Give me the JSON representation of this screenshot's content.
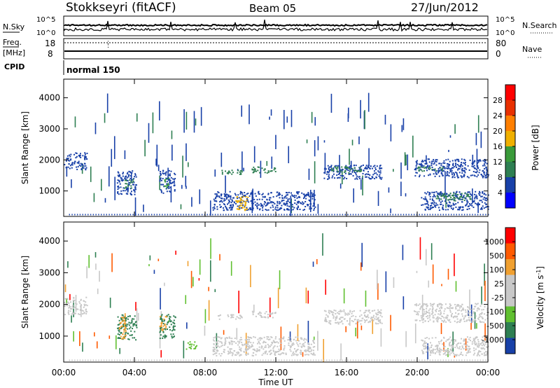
{
  "header": {
    "station": "Stokkseyri (fitACF)",
    "beam": "Beam 05",
    "date": "27/Jun/2012"
  },
  "noise_panel": {
    "left_label": "N.Sky",
    "right_label": "N.Search",
    "left_ticks": [
      "10^5",
      "10^0"
    ],
    "right_ticks": [
      "10^5",
      "10^0"
    ]
  },
  "freq_panel": {
    "left_label_1": "Freq.",
    "left_label_2": "[MHz]",
    "right_label": "Nave",
    "left_ticks": [
      "18",
      "8"
    ],
    "right_ticks": [
      "80",
      "0"
    ],
    "freq_mhz": 8,
    "nave": 0
  },
  "cpid": {
    "label": "CPID",
    "value": "normal 150"
  },
  "colors": {
    "power_scale": [
      "#0000ff",
      "#1840a8",
      "#2e7f52",
      "#3a9b3a",
      "#f0b000",
      "#ff7f00",
      "#e83000",
      "#ff0000"
    ],
    "velocity_scale": [
      "#ff0000",
      "#ff5a00",
      "#f0a030",
      "#c8c8c8",
      "#c8c8c8",
      "#60c030",
      "#2e7f52",
      "#1840a8"
    ],
    "ground_scatter": "#c8c8c8"
  },
  "chart_data": [
    {
      "type": "heatmap",
      "title": "",
      "ylabel": "Slant Range [km]",
      "xlabel": "",
      "x_ticks": [
        "00:00",
        "04:00",
        "08:00",
        "12:00",
        "16:00",
        "20:00",
        "00:00"
      ],
      "y_ticks": [
        "1000",
        "2000",
        "3000",
        "4000"
      ],
      "xlim_hours": [
        0,
        24
      ],
      "ylim_km": [
        180,
        4600
      ],
      "colorbar_label": "Power [dB]",
      "colorbar_ticks": [
        "4",
        "8",
        "12",
        "16",
        "20",
        "24",
        "28"
      ],
      "colorbar_range": [
        0,
        32
      ],
      "regions": [
        {
          "t0": 0.0,
          "t1": 1.3,
          "r0": 1700,
          "r1": 2250,
          "color": 1
        },
        {
          "t0": 3.0,
          "t1": 4.1,
          "r0": 900,
          "r1": 1700,
          "color": 1
        },
        {
          "t0": 3.4,
          "t1": 3.9,
          "r0": 1100,
          "r1": 1400,
          "color": 2
        },
        {
          "t0": 5.4,
          "t1": 6.3,
          "r0": 950,
          "r1": 1700,
          "color": 1
        },
        {
          "t0": 5.6,
          "t1": 5.9,
          "r0": 1100,
          "r1": 1450,
          "color": 3
        },
        {
          "t0": 8.7,
          "t1": 10.1,
          "r0": 1550,
          "r1": 1700,
          "color": 2
        },
        {
          "t0": 10.6,
          "t1": 12.0,
          "r0": 1600,
          "r1": 1800,
          "color": 2
        },
        {
          "t0": 8.4,
          "t1": 14.2,
          "r0": 400,
          "r1": 1000,
          "color": 1
        },
        {
          "t0": 9.7,
          "t1": 10.4,
          "r0": 380,
          "r1": 900,
          "color": 4
        },
        {
          "t0": 14.7,
          "t1": 18.0,
          "r0": 1400,
          "r1": 1850,
          "color": 1
        },
        {
          "t0": 15.0,
          "t1": 16.8,
          "r0": 1600,
          "r1": 1800,
          "color": 2
        },
        {
          "t0": 19.8,
          "t1": 24.0,
          "r0": 1450,
          "r1": 2050,
          "color": 1
        },
        {
          "t0": 20.0,
          "t1": 21.5,
          "r0": 1650,
          "r1": 1800,
          "color": 2
        },
        {
          "t0": 20.2,
          "t1": 24.0,
          "r0": 400,
          "r1": 1000,
          "color": 1
        },
        {
          "t0": 21.0,
          "t1": 23.0,
          "r0": 700,
          "r1": 950,
          "color": 2
        }
      ]
    },
    {
      "type": "heatmap",
      "title": "",
      "ylabel": "Slant Range [km]",
      "xlabel": "Time UT",
      "x_ticks": [
        "00:00",
        "04:00",
        "08:00",
        "12:00",
        "16:00",
        "20:00",
        "00:00"
      ],
      "y_ticks": [
        "1000",
        "2000",
        "3000",
        "4000"
      ],
      "xlim_hours": [
        0,
        24
      ],
      "ylim_km": [
        180,
        4600
      ],
      "colorbar_label": "Velocity [m s^-1]",
      "colorbar_ticks": [
        "1000",
        "500",
        "100",
        "25",
        "-25",
        "-100",
        "-500",
        "-1000"
      ],
      "regions": [
        {
          "t0": 0.0,
          "t1": 1.3,
          "r0": 1700,
          "r1": 2250,
          "color": 3
        },
        {
          "t0": 3.0,
          "t1": 4.1,
          "r0": 900,
          "r1": 1700,
          "color": 6
        },
        {
          "t0": 3.1,
          "t1": 3.5,
          "r0": 900,
          "r1": 1650,
          "color": 2
        },
        {
          "t0": 5.4,
          "t1": 6.3,
          "r0": 950,
          "r1": 1700,
          "color": 6
        },
        {
          "t0": 5.4,
          "t1": 5.8,
          "r0": 1200,
          "r1": 1650,
          "color": 2
        },
        {
          "t0": 6.9,
          "t1": 7.5,
          "r0": 600,
          "r1": 850,
          "color": 5
        },
        {
          "t0": 8.7,
          "t1": 10.1,
          "r0": 1550,
          "r1": 1700,
          "color": 3
        },
        {
          "t0": 10.6,
          "t1": 12.0,
          "r0": 1600,
          "r1": 1800,
          "color": 3
        },
        {
          "t0": 8.4,
          "t1": 14.2,
          "r0": 400,
          "r1": 1000,
          "color": 3
        },
        {
          "t0": 14.7,
          "t1": 18.0,
          "r0": 1400,
          "r1": 1850,
          "color": 3
        },
        {
          "t0": 19.8,
          "t1": 24.0,
          "r0": 1450,
          "r1": 2050,
          "color": 3
        },
        {
          "t0": 20.2,
          "t1": 24.0,
          "r0": 400,
          "r1": 1000,
          "color": 3
        }
      ]
    }
  ]
}
